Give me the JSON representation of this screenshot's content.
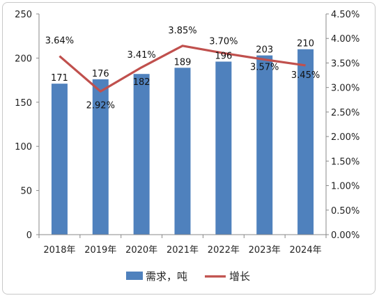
{
  "chart_data": {
    "type": "bar",
    "title": "",
    "categories": [
      "2018年",
      "2019年",
      "2020年",
      "2021年",
      "2022年",
      "2023年",
      "2024年"
    ],
    "series": [
      {
        "name": "需求，吨",
        "type": "bar",
        "axis": "left",
        "values": [
          171,
          176,
          182,
          189,
          196,
          203,
          210
        ],
        "labels": [
          "171",
          "176",
          "182",
          "189",
          "196",
          "203",
          "210"
        ],
        "color": "#4f81bd"
      },
      {
        "name": "增长",
        "type": "line",
        "axis": "right",
        "values": [
          3.64,
          2.92,
          3.41,
          3.85,
          3.7,
          3.57,
          3.45
        ],
        "labels": [
          "3.64%",
          "2.92%",
          "3.41%",
          "3.85%",
          "3.70%",
          "3.57%",
          "3.45%"
        ],
        "color": "#c0504d"
      }
    ],
    "y_left": {
      "min": 0,
      "max": 250,
      "ticks": [
        "0",
        "50",
        "100",
        "150",
        "200",
        "250"
      ]
    },
    "y_right": {
      "min": 0,
      "max": 4.5,
      "ticks": [
        "0.00%",
        "0.50%",
        "1.00%",
        "1.50%",
        "2.00%",
        "2.50%",
        "3.00%",
        "3.50%",
        "4.00%",
        "4.50%"
      ]
    },
    "grid": false,
    "legend_position": "bottom",
    "legend": [
      {
        "label": "需求，吨",
        "marker": "bar"
      },
      {
        "label": "增长",
        "marker": "line"
      }
    ]
  }
}
